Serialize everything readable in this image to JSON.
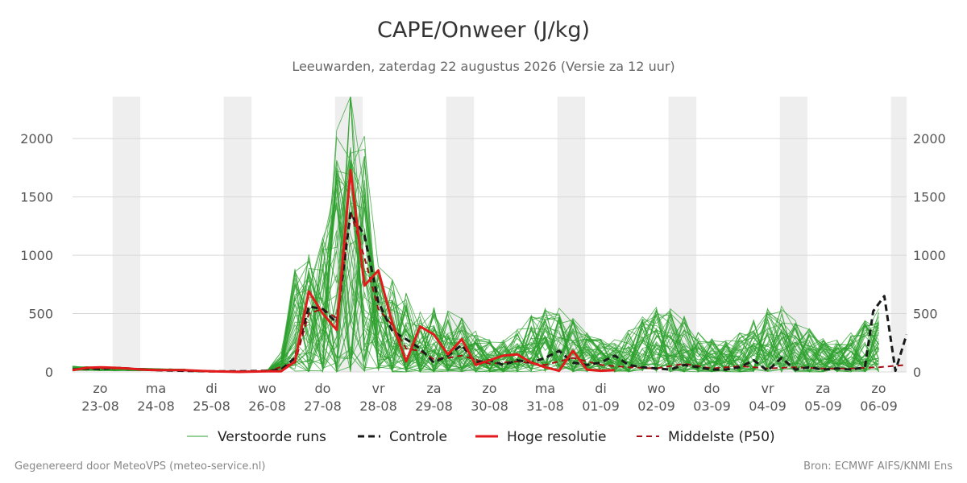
{
  "chart_data": {
    "type": "line",
    "title": "CAPE/Onweer (J/kg)",
    "subtitle": "Leeuwarden, zaterdag 22 augustus 2026 (Versie za 12 uur)",
    "x_unit": "day",
    "x_start": 0,
    "x_end": 14.5,
    "ylim": [
      0,
      2360
    ],
    "yticks": [
      0,
      500,
      1000,
      1500,
      2000
    ],
    "grid": true,
    "legend_position": "bottom",
    "days": [
      {
        "dow": "zo",
        "date": "23-08",
        "x": 0.5
      },
      {
        "dow": "ma",
        "date": "24-08",
        "x": 1.5
      },
      {
        "dow": "di",
        "date": "25-08",
        "x": 2.5
      },
      {
        "dow": "wo",
        "date": "26-08",
        "x": 3.5
      },
      {
        "dow": "do",
        "date": "27-08",
        "x": 4.5
      },
      {
        "dow": "vr",
        "date": "28-08",
        "x": 5.5
      },
      {
        "dow": "za",
        "date": "29-08",
        "x": 6.5
      },
      {
        "dow": "zo",
        "date": "30-08",
        "x": 7.5
      },
      {
        "dow": "ma",
        "date": "31-08",
        "x": 8.5
      },
      {
        "dow": "di",
        "date": "01-09",
        "x": 9.5
      },
      {
        "dow": "wo",
        "date": "02-09",
        "x": 10.5
      },
      {
        "dow": "do",
        "date": "03-09",
        "x": 11.5
      },
      {
        "dow": "vr",
        "date": "04-09",
        "x": 12.5
      },
      {
        "dow": "za",
        "date": "05-09",
        "x": 13.5
      },
      {
        "dow": "zo",
        "date": "06-09",
        "x": 14.5
      }
    ],
    "shaded_days": [
      [
        0.72,
        1.22
      ],
      [
        2.72,
        3.22
      ],
      [
        4.72,
        5.22
      ],
      [
        6.72,
        7.22
      ],
      [
        8.72,
        9.22
      ],
      [
        10.72,
        11.22
      ],
      [
        12.72,
        13.22
      ],
      [
        14.72,
        15.0
      ]
    ],
    "series": [
      {
        "name": "Controle",
        "color": "#1a1a1a",
        "dash": "dashed",
        "x": [
          0,
          0.25,
          0.5,
          0.75,
          1,
          1.25,
          1.5,
          2,
          2.5,
          3,
          3.5,
          3.75,
          4,
          4.25,
          4.5,
          4.75,
          5.0,
          5.25,
          5.5,
          5.75,
          6.0,
          6.25,
          6.5,
          6.75,
          7.0,
          7.25,
          7.5,
          7.75,
          8.0,
          8.25,
          8.5,
          8.75,
          9.0,
          9.25,
          9.5,
          9.75,
          10.0,
          10.25,
          10.5,
          10.75,
          11.0,
          11.25,
          11.5,
          11.75,
          12.0,
          12.25,
          12.5,
          12.75,
          13.0,
          13.25,
          13.5,
          13.75,
          14.0,
          14.25,
          14.4,
          14.6,
          14.8,
          15.0
        ],
        "values": [
          20,
          30,
          25,
          35,
          30,
          20,
          15,
          10,
          5,
          5,
          10,
          20,
          120,
          560,
          540,
          420,
          1360,
          1170,
          600,
          350,
          280,
          200,
          80,
          140,
          230,
          80,
          100,
          60,
          100,
          80,
          120,
          180,
          80,
          60,
          80,
          140,
          60,
          40,
          30,
          20,
          60,
          40,
          20,
          20,
          40,
          100,
          10,
          120,
          20,
          40,
          20,
          30,
          20,
          40,
          520,
          650,
          10,
          320
        ]
      },
      {
        "name": "Hoge resolutie",
        "color": "#e31a1c",
        "dash": "solid",
        "x": [
          0,
          0.25,
          0.5,
          0.75,
          1,
          1.25,
          1.5,
          2,
          2.5,
          3,
          3.5,
          3.75,
          4,
          4.25,
          4.5,
          4.75,
          5.0,
          5.25,
          5.5,
          5.75,
          6.0,
          6.25,
          6.5,
          6.75,
          7.0,
          7.25,
          7.5,
          7.75,
          8.0,
          8.25,
          8.5,
          8.75,
          9.0,
          9.25,
          9.5,
          9.75
        ],
        "values": [
          15,
          35,
          40,
          35,
          30,
          20,
          15,
          15,
          5,
          0,
          5,
          5,
          90,
          690,
          500,
          360,
          1730,
          740,
          870,
          420,
          90,
          390,
          320,
          150,
          280,
          60,
          100,
          140,
          150,
          80,
          40,
          10,
          180,
          20,
          10,
          15
        ]
      },
      {
        "name": "Middelste (P50)",
        "color": "#a50f15",
        "dash": "dashed",
        "x": [
          0,
          0.5,
          1,
          1.5,
          2,
          2.5,
          3,
          3.5,
          4,
          4.25,
          4.5,
          4.75,
          5.0,
          5.25,
          5.5,
          5.75,
          6.0,
          6.25,
          6.5,
          6.75,
          7.0,
          7.5,
          8.0,
          8.5,
          9.0,
          9.5,
          10.0,
          10.5,
          11.0,
          11.5,
          12.0,
          12.5,
          13.0,
          13.5,
          14.0,
          14.5,
          15.0
        ],
        "values": [
          20,
          30,
          30,
          20,
          10,
          5,
          5,
          5,
          80,
          500,
          540,
          460,
          1380,
          980,
          540,
          400,
          200,
          180,
          110,
          120,
          140,
          70,
          90,
          60,
          120,
          60,
          40,
          30,
          70,
          30,
          50,
          30,
          40,
          30,
          30,
          40,
          60
        ]
      }
    ],
    "ensemble_legend": "Verstoorde runs",
    "ensemble_color": "#2ca02c"
  },
  "footer": {
    "left": "Gegenereerd door MeteoVPS (meteo-service.nl)",
    "right": "Bron: ECMWF AIFS/KNMI Ens"
  }
}
